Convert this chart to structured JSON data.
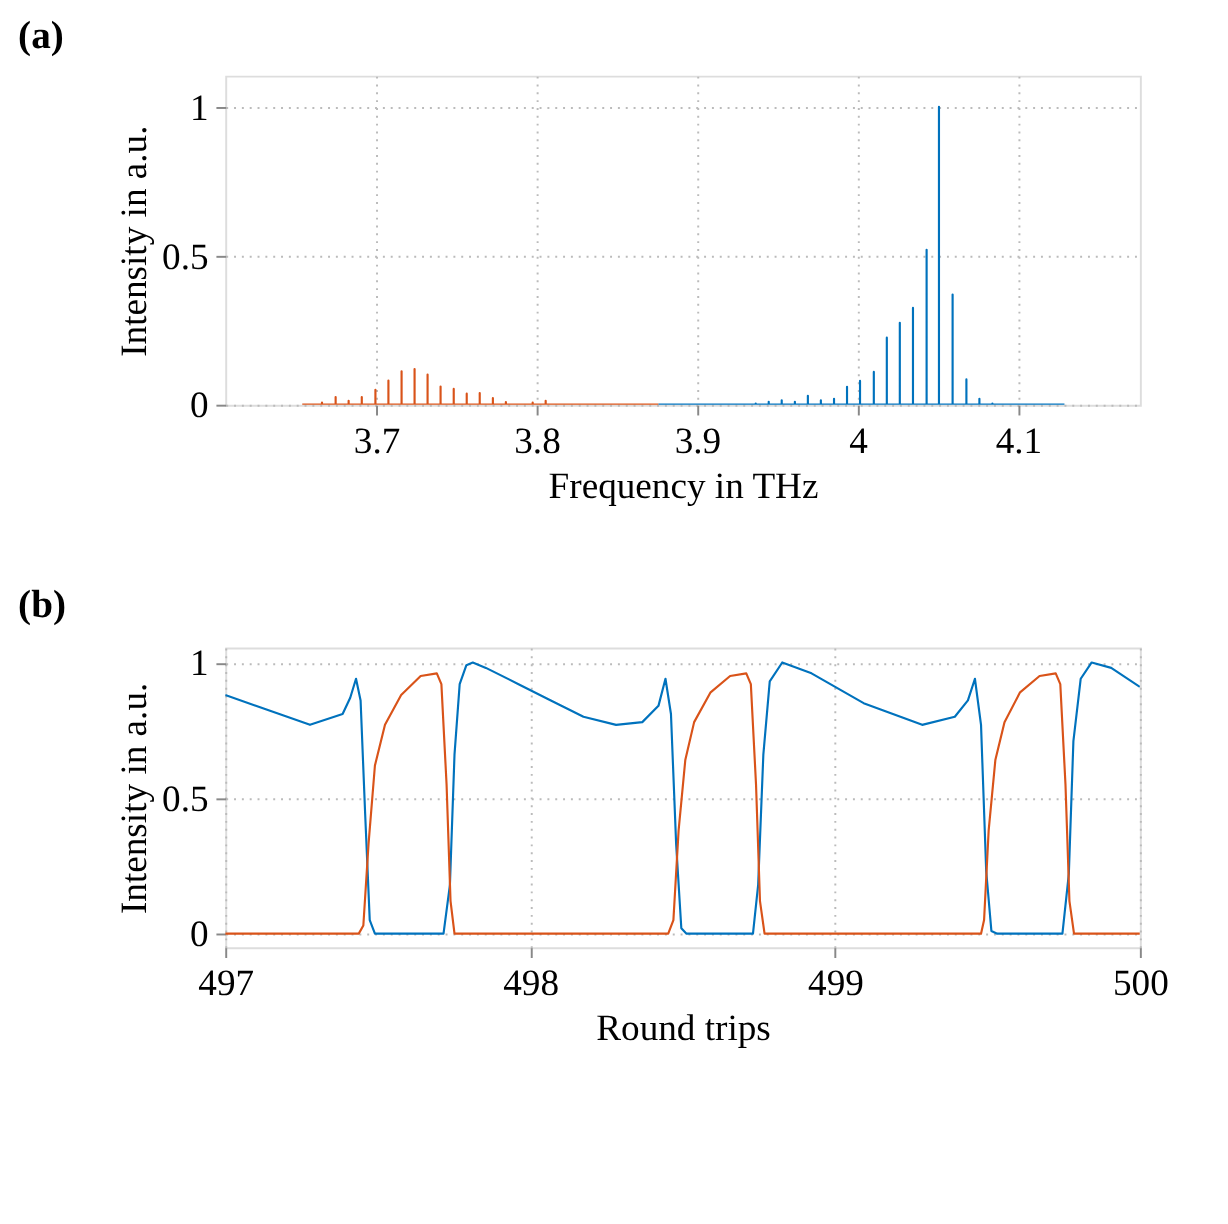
{
  "chart_data": [
    {
      "type": "line",
      "title": "(a)",
      "xlabel": "Frequency in THz",
      "ylabel": "Intensity in a.u.",
      "xlim": [
        3.606,
        4.176
      ],
      "ylim": [
        0,
        1.105
      ],
      "xticks": [
        3.7,
        3.8,
        3.9,
        4,
        4.1
      ],
      "yticks": [
        0,
        0.5,
        1
      ],
      "grid": true,
      "marker": "none",
      "line_style": "solid",
      "series": [
        {
          "color": "#d95319",
          "x": [
            3.654,
            3.6663,
            3.6663,
            3.6663,
            3.6748,
            3.6748,
            3.6748,
            3.6829,
            3.6829,
            3.6829,
            3.6911,
            3.6911,
            3.6911,
            3.6996,
            3.6996,
            3.6996,
            3.7077,
            3.7077,
            3.7077,
            3.7159,
            3.7159,
            3.7159,
            3.724,
            3.724,
            3.724,
            3.7321,
            3.7321,
            3.7321,
            3.7402,
            3.7402,
            3.7402,
            3.7484,
            3.7484,
            3.7484,
            3.7565,
            3.7565,
            3.7565,
            3.7646,
            3.7646,
            3.7646,
            3.7728,
            3.7728,
            3.7728,
            3.7809,
            3.7809,
            3.7809,
            3.7976,
            3.7976,
            3.7976,
            3.8057,
            3.8057,
            3.8057,
            3.876
          ],
          "values": [
            0,
            0,
            0.007,
            0,
            0,
            0.026,
            0,
            0,
            0.013,
            0,
            0,
            0.026,
            0,
            0,
            0.05,
            0,
            0,
            0.081,
            0,
            0,
            0.112,
            0,
            0,
            0.12,
            0,
            0,
            0.101,
            0,
            0,
            0.061,
            0,
            0,
            0.053,
            0,
            0,
            0.037,
            0,
            0,
            0.039,
            0,
            0,
            0.022,
            0,
            0,
            0.009,
            0,
            0,
            0.007,
            0,
            0,
            0.013,
            0,
            0
          ]
        },
        {
          "color": "#0072bd",
          "x": [
            3.876,
            3.9366,
            3.9366,
            3.9366,
            3.9447,
            3.9447,
            3.9447,
            3.9528,
            3.9528,
            3.9528,
            3.961,
            3.961,
            3.961,
            3.9691,
            3.9691,
            3.9691,
            3.9772,
            3.9772,
            3.9772,
            3.9854,
            3.9854,
            3.9854,
            3.9935,
            3.9935,
            3.9935,
            4.0016,
            4.0016,
            4.0016,
            4.0102,
            4.0102,
            4.0102,
            4.0183,
            4.0183,
            4.0183,
            4.0264,
            4.0264,
            4.0264,
            4.0346,
            4.0346,
            4.0346,
            4.0431,
            4.0431,
            4.0431,
            4.0508,
            4.0508,
            4.0508,
            4.0593,
            4.0593,
            4.0593,
            4.0679,
            4.0679,
            4.0679,
            4.076,
            4.076,
            4.076,
            4.0841,
            4.0841,
            4.0841,
            4.129
          ],
          "values": [
            0,
            0,
            0.004,
            0,
            0,
            0.01,
            0,
            0,
            0.015,
            0,
            0,
            0.01,
            0,
            0,
            0.03,
            0,
            0,
            0.015,
            0,
            0,
            0.02,
            0,
            0,
            0.06,
            0,
            0,
            0.08,
            0,
            0,
            0.11,
            0,
            0,
            0.225,
            0,
            0,
            0.275,
            0,
            0,
            0.325,
            0,
            0,
            0.52,
            0,
            0,
            1.0,
            0,
            0,
            0.37,
            0,
            0,
            0.085,
            0,
            0,
            0.02,
            0,
            0,
            0.004,
            0,
            0
          ]
        }
      ]
    },
    {
      "type": "line",
      "title": "(b)",
      "xlabel": "Round trips",
      "ylabel": "Intensity in a.u.",
      "xlim": [
        497,
        500
      ],
      "ylim": [
        -0.05,
        1.055
      ],
      "xticks": [
        497,
        498,
        499,
        500
      ],
      "yticks": [
        0,
        0.5,
        1
      ],
      "grid": true,
      "marker": "none",
      "line_style": "solid",
      "series": [
        {
          "color": "#0072bd",
          "x": [
            497.0,
            497.278,
            497.385,
            497.41,
            497.429,
            497.444,
            497.459,
            497.474,
            497.491,
            497.716,
            497.737,
            497.752,
            497.769,
            497.791,
            497.812,
            497.855,
            497.962,
            498.068,
            498.175,
            498.282,
            498.368,
            498.421,
            498.444,
            498.462,
            498.479,
            498.496,
            498.513,
            498.731,
            498.748,
            498.765,
            498.786,
            498.827,
            498.923,
            499.094,
            499.286,
            499.393,
            499.436,
            499.459,
            499.479,
            499.496,
            499.513,
            499.532,
            499.746,
            499.767,
            499.782,
            499.806,
            499.842,
            499.906,
            500.0
          ],
          "values": [
            0.88,
            0.77,
            0.81,
            0.87,
            0.94,
            0.86,
            0.44,
            0.05,
            0,
            0,
            0.18,
            0.66,
            0.92,
            0.99,
            1.0,
            0.98,
            0.92,
            0.86,
            0.8,
            0.77,
            0.78,
            0.84,
            0.94,
            0.81,
            0.33,
            0.02,
            0,
            0,
            0.18,
            0.66,
            0.93,
            1.0,
            0.96,
            0.85,
            0.77,
            0.8,
            0.86,
            0.94,
            0.77,
            0.23,
            0.01,
            0,
            0,
            0.22,
            0.71,
            0.94,
            1.0,
            0.98,
            0.91
          ]
        },
        {
          "color": "#d95319",
          "x": [
            497.0,
            497.438,
            497.453,
            497.47,
            497.491,
            497.524,
            497.577,
            497.641,
            497.694,
            497.709,
            497.726,
            497.739,
            497.752,
            498.453,
            498.47,
            498.487,
            498.509,
            498.538,
            498.592,
            498.656,
            498.709,
            498.724,
            498.741,
            498.754,
            498.769,
            499.479,
            499.489,
            499.504,
            499.526,
            499.556,
            499.607,
            499.671,
            499.724,
            499.739,
            499.756,
            499.769,
            499.784,
            500.0
          ],
          "values": [
            0,
            0,
            0.03,
            0.33,
            0.62,
            0.77,
            0.88,
            0.95,
            0.96,
            0.92,
            0.55,
            0.12,
            0,
            0,
            0.05,
            0.38,
            0.64,
            0.78,
            0.89,
            0.95,
            0.96,
            0.92,
            0.55,
            0.12,
            0,
            0,
            0.05,
            0.38,
            0.64,
            0.78,
            0.89,
            0.95,
            0.96,
            0.92,
            0.55,
            0.12,
            0,
            0
          ]
        }
      ]
    }
  ]
}
